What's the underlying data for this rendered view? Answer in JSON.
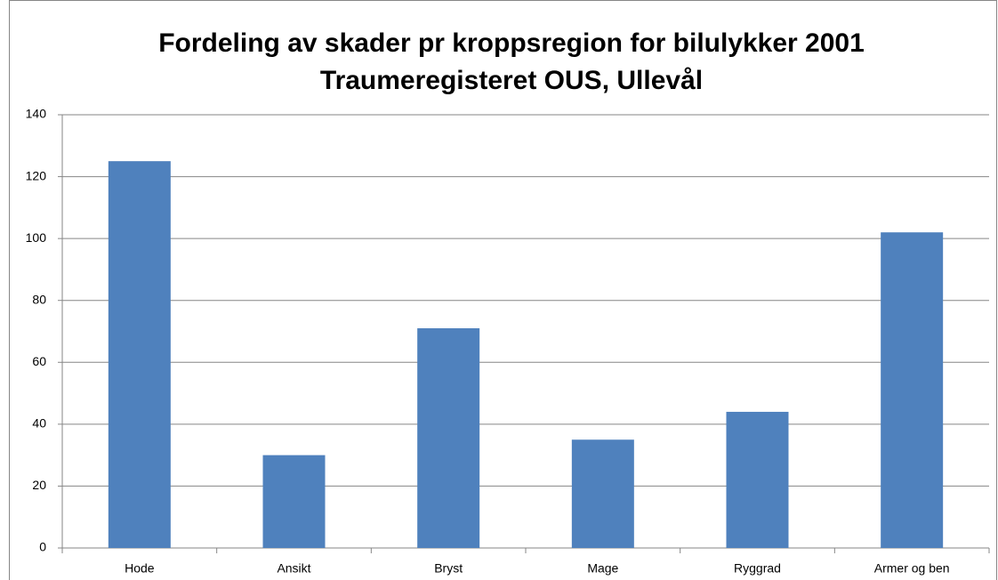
{
  "chart_data": {
    "type": "bar",
    "title": "Fordeling av skader pr kroppsregion for bilulykker 2001",
    "subtitle": "Traumeregisteret OUS, Ullevål",
    "categories": [
      "Hode",
      "Ansikt",
      "Bryst",
      "Mage",
      "Ryggrad",
      "Armer og ben"
    ],
    "values": [
      125,
      30,
      71,
      35,
      44,
      102
    ],
    "color": "#4f81bd",
    "ylim": [
      0,
      140
    ],
    "yticks": [
      0,
      20,
      40,
      60,
      80,
      100,
      120,
      140
    ],
    "grid": true
  }
}
